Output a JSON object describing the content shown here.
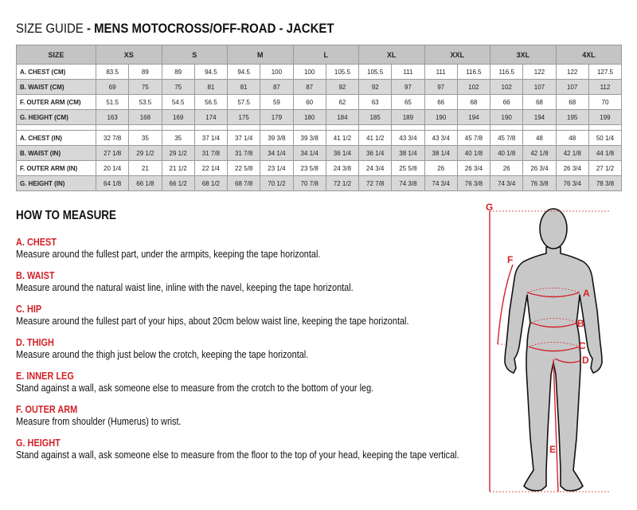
{
  "title": {
    "prefix": "SIZE GUIDE",
    "bold": "- MENS MOTOCROSS/OFF-ROAD - JACKET"
  },
  "table": {
    "size_header": "SIZE",
    "sizes": [
      "XS",
      "S",
      "M",
      "L",
      "XL",
      "XXL",
      "3XL",
      "4XL"
    ],
    "cm_rows": [
      {
        "label": "A. CHEST (CM)",
        "values": [
          "83.5",
          "89",
          "89",
          "94.5",
          "94.5",
          "100",
          "100",
          "105.5",
          "105.5",
          "111",
          "111",
          "116.5",
          "116.5",
          "122",
          "122",
          "127.5"
        ]
      },
      {
        "label": "B. WAIST (CM)",
        "values": [
          "69",
          "75",
          "75",
          "81",
          "81",
          "87",
          "87",
          "92",
          "92",
          "97",
          "97",
          "102",
          "102",
          "107",
          "107",
          "112"
        ]
      },
      {
        "label": "F. OUTER ARM (CM)",
        "values": [
          "51.5",
          "53.5",
          "54.5",
          "56.5",
          "57.5",
          "59",
          "60",
          "62",
          "63",
          "65",
          "66",
          "68",
          "66",
          "68",
          "68",
          "70"
        ]
      },
      {
        "label": "G. HEIGHT (CM)",
        "values": [
          "163",
          "168",
          "169",
          "174",
          "175",
          "179",
          "180",
          "184",
          "185",
          "189",
          "190",
          "194",
          "190",
          "194",
          "195",
          "199"
        ]
      }
    ],
    "in_rows": [
      {
        "label": "A. CHEST (IN)",
        "values": [
          "32 7/8",
          "35",
          "35",
          "37 1/4",
          "37 1/4",
          "39 3/8",
          "39 3/8",
          "41 1/2",
          "41 1/2",
          "43 3/4",
          "43 3/4",
          "45 7/8",
          "45 7/8",
          "48",
          "48",
          "50 1/4"
        ]
      },
      {
        "label": "B. WAIST (IN)",
        "values": [
          "27 1/8",
          "29 1/2",
          "29 1/2",
          "31 7/8",
          "31 7/8",
          "34 1/4",
          "34 1/4",
          "36 1/4",
          "36 1/4",
          "38 1/4",
          "38 1/4",
          "40 1/8",
          "40 1/8",
          "42 1/8",
          "42 1/8",
          "44 1/8"
        ]
      },
      {
        "label": "F. OUTER ARM (IN)",
        "values": [
          "20 1/4",
          "21",
          "21 1/2",
          "22 1/4",
          "22 5/8",
          "23 1/4",
          "23 5/8",
          "24 3/8",
          "24 3/4",
          "25 5/8",
          "26",
          "26 3/4",
          "26",
          "26 3/4",
          "26 3/4",
          "27 1/2"
        ]
      },
      {
        "label": "G. HEIGHT (IN)",
        "values": [
          "64 1/8",
          "66 1/8",
          "66 1/2",
          "68 1/2",
          "68 7/8",
          "70 1/2",
          "70 7/8",
          "72 1/2",
          "72 7/8",
          "74 3/8",
          "74 3/4",
          "76 3/8",
          "74 3/4",
          "76 3/8",
          "76 3/4",
          "78 3/8"
        ]
      }
    ]
  },
  "how_to_measure": {
    "heading": "HOW TO MEASURE",
    "sections": [
      {
        "title": "A. CHEST",
        "text": "Measure around the fullest part, under the armpits, keeping the tape horizontal."
      },
      {
        "title": "B. WAIST",
        "text": "Measure around the natural waist line, inline with the navel, keeping the tape horizontal."
      },
      {
        "title": "C. HIP",
        "text": "Measure around the fullest part of your hips, about 20cm below waist line, keeping the tape horizontal."
      },
      {
        "title": "D. THIGH",
        "text": "Measure around the thigh just below the crotch, keeping the tape horizontal."
      },
      {
        "title": "E. INNER LEG",
        "text": "Stand against a wall, ask someone else to measure from the crotch to the bottom of your leg."
      },
      {
        "title": "F. OUTER ARM",
        "text": "Measure from shoulder (Humerus) to wrist."
      },
      {
        "title": "G. HEIGHT",
        "text": "Stand against a wall, ask someone else to measure from the floor to the top of your head, keeping the tape vertical."
      }
    ]
  },
  "figure": {
    "labels": {
      "a": "A",
      "b": "B",
      "c": "C",
      "d": "D",
      "e": "E",
      "f": "F",
      "g": "G"
    }
  },
  "colors": {
    "accent": "#d2232a",
    "header_bg": "#c4c4c4",
    "alt_row": "#d8d8d8",
    "body": "#c8c8c8"
  }
}
